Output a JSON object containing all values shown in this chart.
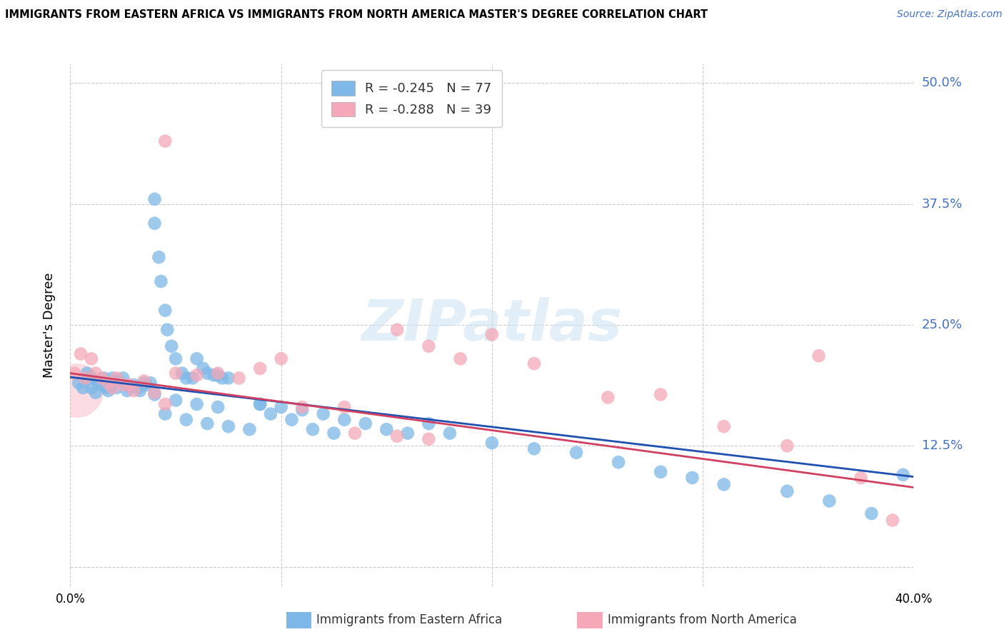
{
  "title": "IMMIGRANTS FROM EASTERN AFRICA VS IMMIGRANTS FROM NORTH AMERICA MASTER'S DEGREE CORRELATION CHART",
  "source": "Source: ZipAtlas.com",
  "ylabel": "Master's Degree",
  "xlim": [
    0.0,
    0.4
  ],
  "ylim": [
    -0.02,
    0.52
  ],
  "ytick_vals": [
    0.0,
    0.125,
    0.25,
    0.375,
    0.5
  ],
  "ytick_labels": [
    "",
    "12.5%",
    "25.0%",
    "37.5%",
    "50.0%"
  ],
  "xtick_vals": [
    0.0,
    0.1,
    0.2,
    0.3,
    0.4
  ],
  "blue_R": -0.245,
  "blue_N": 77,
  "pink_R": -0.288,
  "pink_N": 39,
  "blue_color": "#7db8e8",
  "pink_color": "#f4a8b8",
  "line_blue": "#2050b0",
  "line_pink": "#d04060",
  "watermark": "ZIPatlas",
  "blue_scatter_x": [
    0.004,
    0.006,
    0.008,
    0.01,
    0.01,
    0.012,
    0.013,
    0.015,
    0.016,
    0.017,
    0.018,
    0.02,
    0.02,
    0.022,
    0.023,
    0.025,
    0.027,
    0.028,
    0.03,
    0.032,
    0.033,
    0.035,
    0.036,
    0.038,
    0.04,
    0.04,
    0.042,
    0.043,
    0.045,
    0.046,
    0.048,
    0.05,
    0.053,
    0.055,
    0.058,
    0.06,
    0.063,
    0.065,
    0.068,
    0.07,
    0.072,
    0.075,
    0.04,
    0.05,
    0.06,
    0.07,
    0.09,
    0.1,
    0.11,
    0.12,
    0.13,
    0.14,
    0.15,
    0.16,
    0.17,
    0.18,
    0.2,
    0.22,
    0.24,
    0.26,
    0.28,
    0.295,
    0.31,
    0.34,
    0.36,
    0.38,
    0.395,
    0.045,
    0.055,
    0.065,
    0.075,
    0.085,
    0.09,
    0.095,
    0.105,
    0.115,
    0.125
  ],
  "blue_scatter_y": [
    0.19,
    0.185,
    0.2,
    0.185,
    0.195,
    0.18,
    0.192,
    0.188,
    0.195,
    0.185,
    0.182,
    0.195,
    0.188,
    0.185,
    0.192,
    0.195,
    0.182,
    0.186,
    0.188,
    0.185,
    0.182,
    0.19,
    0.188,
    0.19,
    0.38,
    0.355,
    0.32,
    0.295,
    0.265,
    0.245,
    0.228,
    0.215,
    0.2,
    0.195,
    0.195,
    0.215,
    0.205,
    0.2,
    0.198,
    0.198,
    0.195,
    0.195,
    0.178,
    0.172,
    0.168,
    0.165,
    0.168,
    0.165,
    0.162,
    0.158,
    0.152,
    0.148,
    0.142,
    0.138,
    0.148,
    0.138,
    0.128,
    0.122,
    0.118,
    0.108,
    0.098,
    0.092,
    0.085,
    0.078,
    0.068,
    0.055,
    0.095,
    0.158,
    0.152,
    0.148,
    0.145,
    0.142,
    0.168,
    0.158,
    0.152,
    0.142,
    0.138
  ],
  "pink_scatter_x": [
    0.002,
    0.005,
    0.007,
    0.01,
    0.012,
    0.015,
    0.018,
    0.02,
    0.022,
    0.025,
    0.028,
    0.03,
    0.035,
    0.04,
    0.045,
    0.05,
    0.06,
    0.07,
    0.08,
    0.09,
    0.1,
    0.11,
    0.13,
    0.155,
    0.17,
    0.185,
    0.2,
    0.22,
    0.255,
    0.28,
    0.31,
    0.34,
    0.355,
    0.375,
    0.39,
    0.045,
    0.135,
    0.155,
    0.17
  ],
  "pink_scatter_y": [
    0.2,
    0.22,
    0.195,
    0.215,
    0.2,
    0.195,
    0.19,
    0.185,
    0.195,
    0.188,
    0.188,
    0.182,
    0.192,
    0.18,
    0.44,
    0.2,
    0.198,
    0.2,
    0.195,
    0.205,
    0.215,
    0.165,
    0.165,
    0.245,
    0.228,
    0.215,
    0.24,
    0.21,
    0.175,
    0.178,
    0.145,
    0.125,
    0.218,
    0.092,
    0.048,
    0.168,
    0.138,
    0.135,
    0.132
  ]
}
